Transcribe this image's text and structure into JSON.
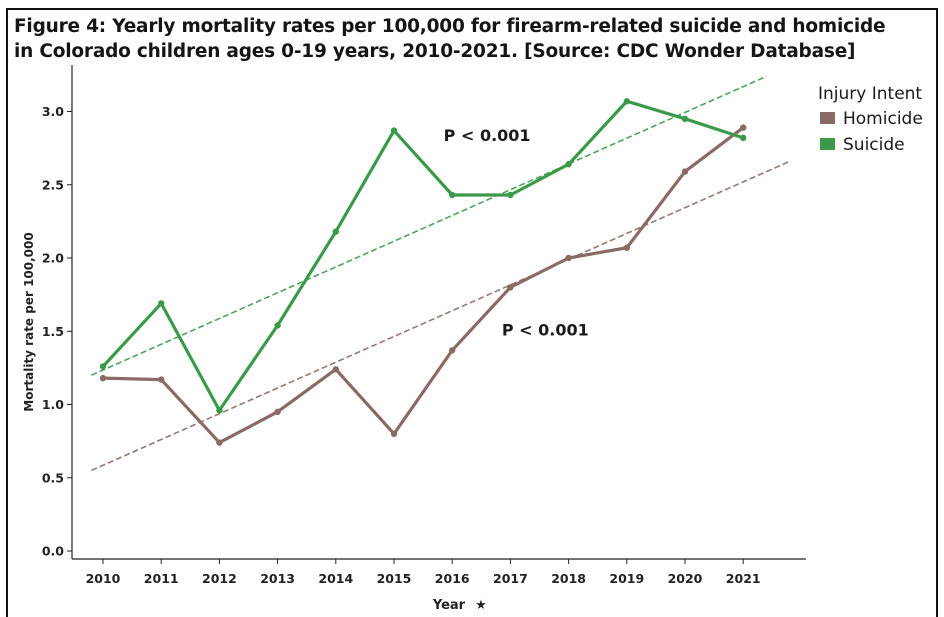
{
  "title_lines": [
    "Figure 4: Yearly mortality rates per 100,000 for firearm-related suicide and homicide",
    "in Colorado children ages 0-19 years, 2010-2021. [Source: CDC Wonder Database]"
  ],
  "chart_data": {
    "type": "line",
    "title": "Figure 4: Yearly mortality rates per 100,000 for firearm-related suicide and homicide in Colorado children ages 0-19 years, 2010-2021. [Source: CDC Wonder Database]",
    "xlabel": "Year",
    "xlabel_marker": "★",
    "ylabel": "Mortality rate per 100,000",
    "x": [
      2010,
      2011,
      2012,
      2013,
      2014,
      2015,
      2016,
      2017,
      2018,
      2019,
      2020,
      2021
    ],
    "xtick_labels": [
      "2010",
      "2011",
      "2012",
      "2013",
      "2014",
      "2015",
      "2016",
      "2017",
      "2018",
      "2019",
      "2020",
      "2021"
    ],
    "ylim": [
      0,
      3.0
    ],
    "yticks": [
      0,
      0.5,
      1.0,
      1.5,
      2.0,
      2.5,
      3.0
    ],
    "ytick_labels": [
      "0.0",
      "0.5",
      "1.0",
      "1.5",
      "2.0",
      "2.5",
      "3.0"
    ],
    "grid": false,
    "legend": {
      "title": "Injury Intent",
      "placement": "top-right",
      "entries": [
        "Homicide",
        "Suicide"
      ]
    },
    "series": [
      {
        "name": "Homicide",
        "color": "#8a6a64",
        "values": [
          1.18,
          1.17,
          0.74,
          0.95,
          1.24,
          0.8,
          1.37,
          1.8,
          2.0,
          2.07,
          2.59,
          2.89
        ],
        "trend": {
          "start": [
            2009.8,
            0.55
          ],
          "end": [
            2021.8,
            2.66
          ],
          "color": "#8a6a64"
        }
      },
      {
        "name": "Suicide",
        "color": "#3b9a4a",
        "values": [
          1.26,
          1.69,
          0.96,
          1.54,
          2.18,
          2.87,
          2.43,
          2.43,
          2.64,
          3.07,
          2.95,
          2.82
        ],
        "trend": {
          "start": [
            2009.8,
            1.2
          ],
          "end": [
            2021.4,
            3.24
          ],
          "color": "#3b9a4a"
        }
      }
    ],
    "annotations": [
      {
        "text": "P < 0.001",
        "x": 2016.6,
        "y": 2.8,
        "series": "Suicide"
      },
      {
        "text": "P < 0.001",
        "x": 2017.6,
        "y": 1.47,
        "series": "Homicide"
      }
    ]
  }
}
